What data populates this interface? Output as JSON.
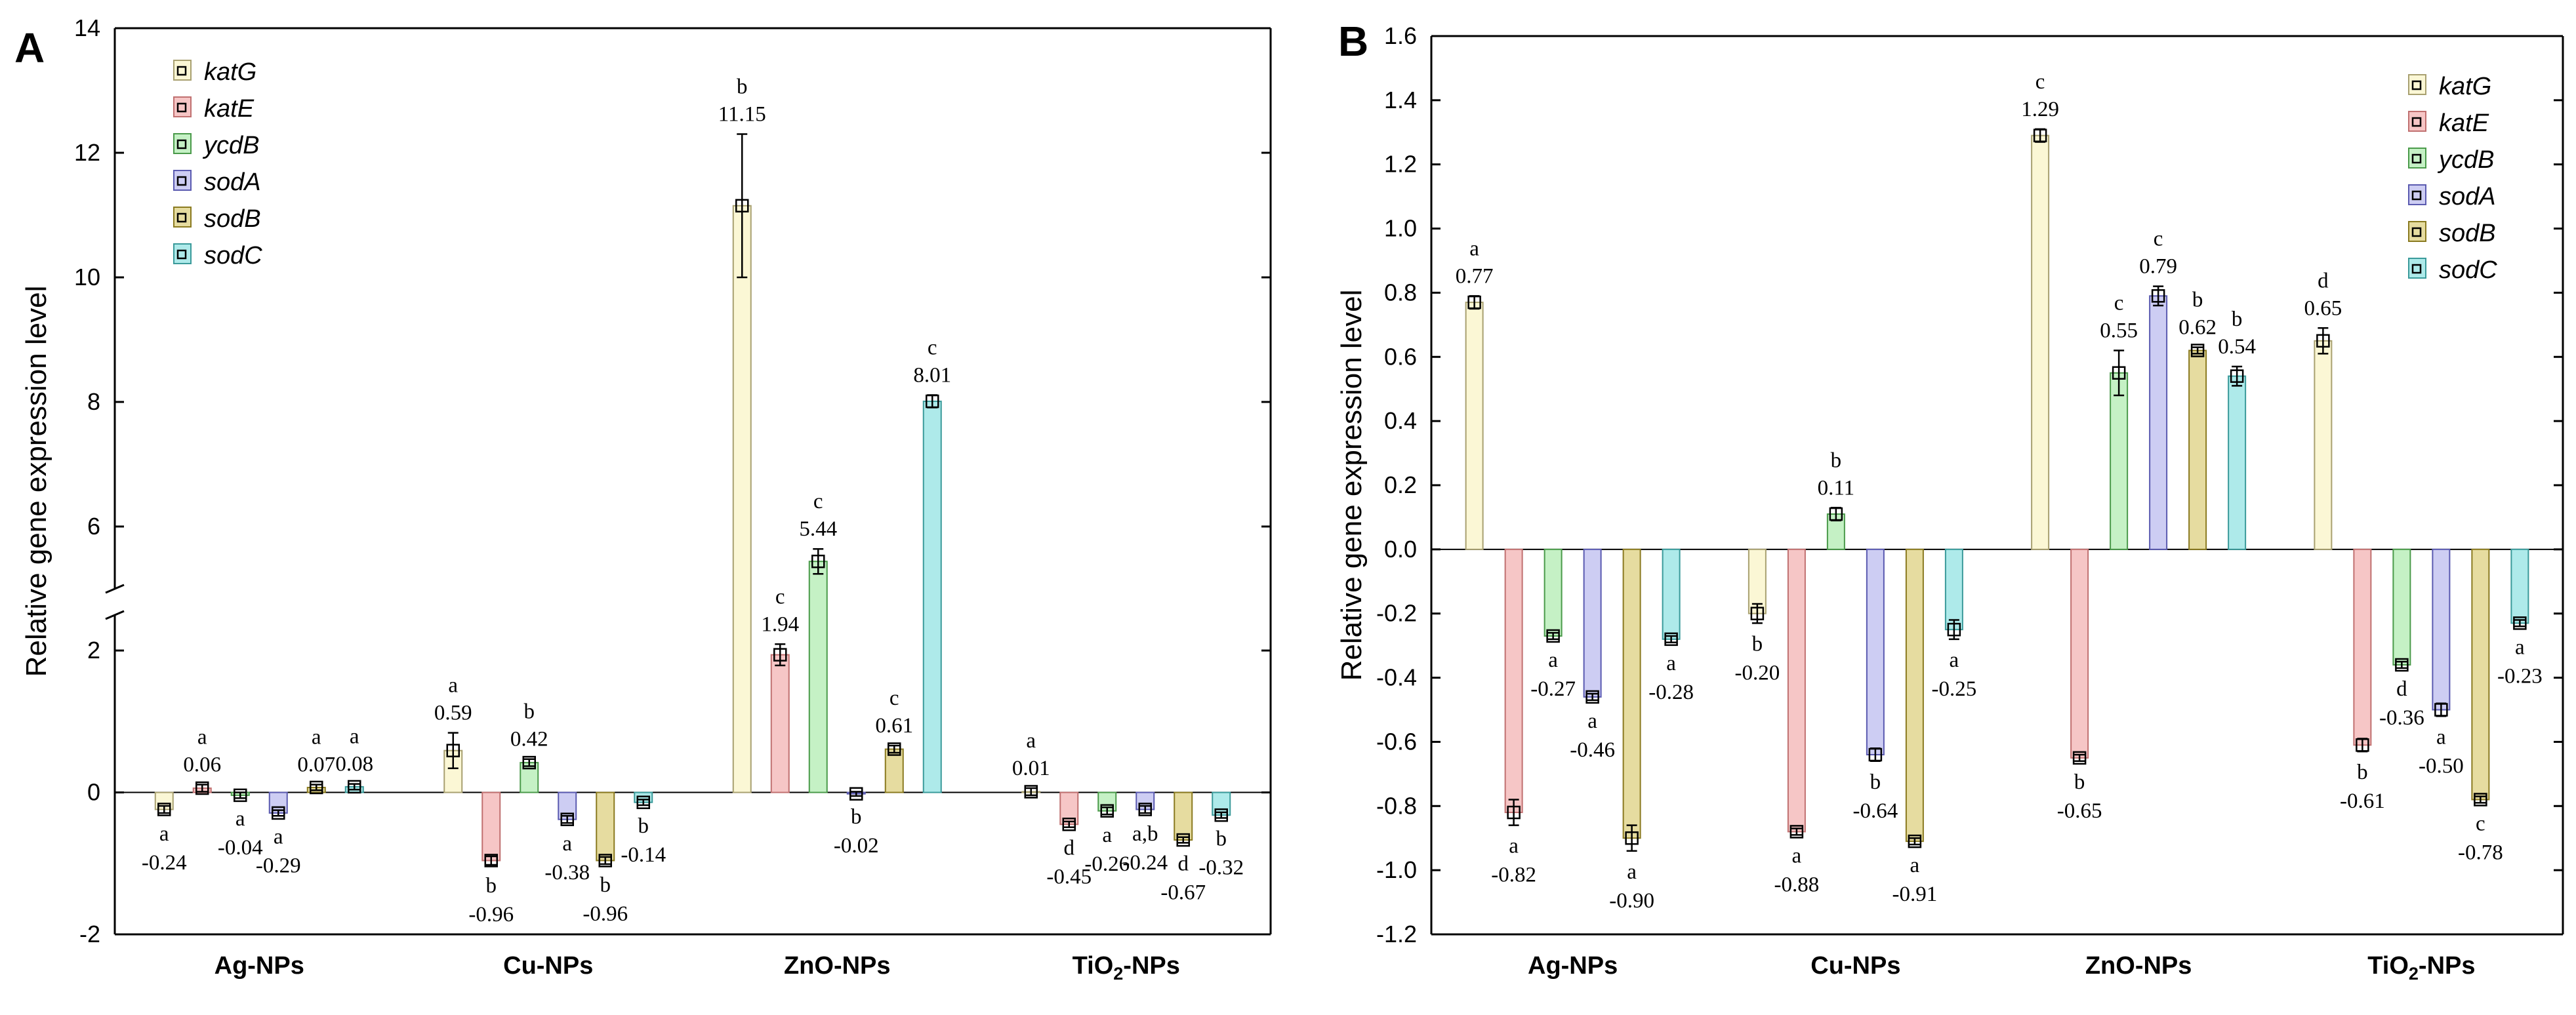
{
  "chart_data": [
    {
      "panel_label": "A",
      "type": "bar",
      "ylabel": "Relative gene expression level",
      "ylim": [
        -2,
        14
      ],
      "axis_break": [
        2.5,
        5
      ],
      "yticks": [
        "-2",
        "0",
        "2",
        "6",
        "8",
        "10",
        "12",
        "14"
      ],
      "categories": [
        "Ag-NPs",
        "Cu-NPs",
        "ZnO-NPs",
        "TiO2-NPs"
      ],
      "legend_position": "top-left",
      "series": [
        {
          "name": "katG",
          "color": "#fbf7d5",
          "values": [
            -0.24,
            0.59,
            11.15,
            0.01
          ],
          "errors": [
            0.05,
            0.25,
            1.15,
            0.05
          ],
          "letters": [
            "a",
            "a",
            "b",
            "a"
          ],
          "labels": [
            "-0.24",
            "0.59",
            "11.15",
            "0.01"
          ]
        },
        {
          "name": "katE",
          "color": "#f6c6c6",
          "values": [
            0.06,
            -0.96,
            1.94,
            -0.45
          ],
          "errors": [
            0.05,
            0.06,
            0.15,
            0.04
          ],
          "letters": [
            "a",
            "b",
            "c",
            "d"
          ],
          "labels": [
            "0.06",
            "-0.96",
            "1.94",
            "-0.45"
          ]
        },
        {
          "name": "ycdB",
          "color": "#c5f1c5",
          "values": [
            -0.04,
            0.42,
            5.44,
            -0.26
          ],
          "errors": [
            0.04,
            0.05,
            0.2,
            0.05
          ],
          "letters": [
            "a",
            "b",
            "c",
            "a"
          ],
          "labels": [
            "-0.04",
            "0.42",
            "5.44",
            "-0.26"
          ]
        },
        {
          "name": "sodA",
          "color": "#cdcdf3",
          "values": [
            -0.29,
            -0.38,
            -0.02,
            -0.24
          ],
          "errors": [
            0.04,
            0.05,
            0.03,
            0.05
          ],
          "letters": [
            "a",
            "a",
            "b",
            "a,b"
          ],
          "labels": [
            "-0.29",
            "-0.38",
            "-0.02",
            "-0.24"
          ]
        },
        {
          "name": "sodB",
          "color": "#e6dca0",
          "values": [
            0.07,
            -0.96,
            0.61,
            -0.67
          ],
          "errors": [
            0.04,
            0.05,
            0.05,
            0.04
          ],
          "letters": [
            "a",
            "b",
            "c",
            "d"
          ],
          "labels": [
            "0.07",
            "-0.96",
            "0.61",
            "-0.67"
          ]
        },
        {
          "name": "sodC",
          "color": "#aeeaea",
          "values": [
            0.08,
            -0.14,
            8.01,
            -0.32
          ],
          "errors": [
            0.04,
            0.04,
            0.1,
            0.04
          ],
          "letters": [
            "a",
            "b",
            "c",
            "b"
          ],
          "labels": [
            "0.08",
            "-0.14",
            "8.01",
            "-0.32"
          ]
        }
      ]
    },
    {
      "panel_label": "B",
      "type": "bar",
      "ylabel": "Relative gene expression level",
      "ylim": [
        -1.2,
        1.6
      ],
      "yticks": [
        "-1.2",
        "-1.0",
        "-0.8",
        "-0.6",
        "-0.4",
        "-0.2",
        "0.0",
        "0.2",
        "0.4",
        "0.6",
        "0.8",
        "1.0",
        "1.2",
        "1.4",
        "1.6"
      ],
      "categories": [
        "Ag-NPs",
        "Cu-NPs",
        "ZnO-NPs",
        "TiO2-NPs"
      ],
      "legend_position": "top-right",
      "series": [
        {
          "name": "katG",
          "color": "#fbf7d5",
          "values": [
            0.77,
            -0.2,
            1.29,
            0.65
          ],
          "errors": [
            0.02,
            0.03,
            0.02,
            0.04
          ],
          "letters": [
            "a",
            "b",
            "c",
            "d"
          ],
          "labels": [
            "0.77",
            "-0.20",
            "1.29",
            "0.65"
          ]
        },
        {
          "name": "katE",
          "color": "#f6c6c6",
          "values": [
            -0.82,
            -0.88,
            -0.65,
            -0.61
          ],
          "errors": [
            0.04,
            0.01,
            0.01,
            0.02
          ],
          "letters": [
            "a",
            "a",
            "b",
            "b"
          ],
          "labels": [
            "-0.82",
            "-0.88",
            "-0.65",
            "-0.61"
          ]
        },
        {
          "name": "ycdB",
          "color": "#c5f1c5",
          "values": [
            -0.27,
            0.11,
            0.55,
            -0.36
          ],
          "errors": [
            0.01,
            0.02,
            0.07,
            0.01
          ],
          "letters": [
            "a",
            "b",
            "c",
            "d"
          ],
          "labels": [
            "-0.27",
            "0.11",
            "0.55",
            "-0.36"
          ]
        },
        {
          "name": "sodA",
          "color": "#cdcdf3",
          "values": [
            -0.46,
            -0.64,
            0.79,
            -0.5
          ],
          "errors": [
            0.01,
            0.02,
            0.03,
            0.02
          ],
          "letters": [
            "a",
            "b",
            "c",
            "a"
          ],
          "labels": [
            "-0.46",
            "-0.64",
            "0.79",
            "-0.50"
          ]
        },
        {
          "name": "sodB",
          "color": "#e6dca0",
          "values": [
            -0.9,
            -0.91,
            0.62,
            -0.78
          ],
          "errors": [
            0.04,
            0.01,
            0.01,
            0.01
          ],
          "letters": [
            "a",
            "a",
            "b",
            "c"
          ],
          "labels": [
            "-0.90",
            "-0.91",
            "0.62",
            "-0.78"
          ]
        },
        {
          "name": "sodC",
          "color": "#aeeaea",
          "values": [
            -0.28,
            -0.25,
            0.54,
            -0.23
          ],
          "errors": [
            0.01,
            0.03,
            0.03,
            0.01
          ],
          "letters": [
            "a",
            "a",
            "b",
            "a"
          ],
          "labels": [
            "-0.28",
            "-0.25",
            "0.54",
            "-0.23"
          ]
        }
      ]
    }
  ]
}
